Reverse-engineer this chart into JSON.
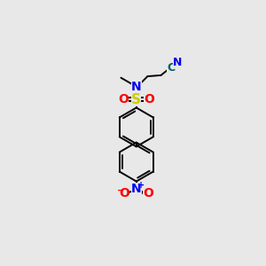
{
  "bg_color": "#e8e8e8",
  "bond_color": "#000000",
  "atom_colors": {
    "N": "#0000ee",
    "O": "#ff0000",
    "S": "#cccc00",
    "C_nitrile": "#006060",
    "N_nitrile": "#0000ee",
    "N_nitro": "#0000ee",
    "O_nitro": "#ff0000"
  }
}
